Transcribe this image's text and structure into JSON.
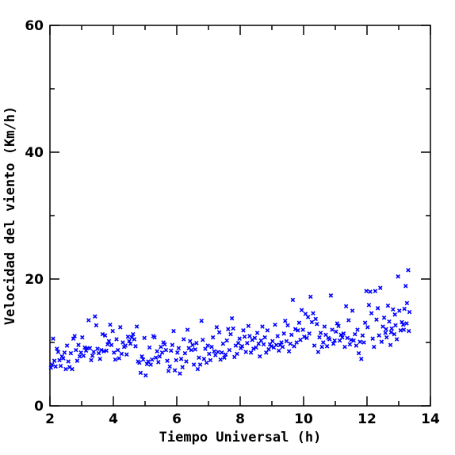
{
  "chart_data": {
    "type": "scatter",
    "title": "",
    "xlabel": "Tiempo Universal (h)",
    "ylabel": "Velocidad del viento (Km/h)",
    "xlim": [
      2,
      14
    ],
    "ylim": [
      0,
      60
    ],
    "xticks": [
      2,
      4,
      6,
      8,
      10,
      12,
      14
    ],
    "yticks": [
      0,
      20,
      40,
      60
    ],
    "grid": false,
    "marker": "x",
    "color": "#0000ff",
    "series": [
      {
        "points": [
          [
            2.03,
            6.0
          ],
          [
            2.07,
            6.5
          ],
          [
            2.1,
            10.6
          ],
          [
            2.14,
            7.1
          ],
          [
            2.18,
            6.2
          ],
          [
            2.22,
            9.0
          ],
          [
            2.26,
            8.5
          ],
          [
            2.3,
            7.2
          ],
          [
            2.34,
            6.3
          ],
          [
            2.38,
            7.8
          ],
          [
            2.42,
            7.5
          ],
          [
            2.46,
            8.4
          ],
          [
            2.5,
            5.8
          ],
          [
            2.54,
            9.5
          ],
          [
            2.58,
            7.0
          ],
          [
            2.62,
            6.1
          ],
          [
            2.66,
            8.3
          ],
          [
            2.7,
            5.8
          ],
          [
            2.74,
            10.6
          ],
          [
            2.78,
            11.0
          ],
          [
            2.82,
            8.8
          ],
          [
            2.86,
            7.1
          ],
          [
            2.9,
            9.6
          ],
          [
            2.94,
            7.8
          ],
          [
            2.98,
            8.4
          ],
          [
            3.02,
            10.8
          ],
          [
            3.06,
            7.9
          ],
          [
            3.1,
            9.2
          ],
          [
            3.14,
            8.7
          ],
          [
            3.18,
            9.1
          ],
          [
            3.22,
            13.5
          ],
          [
            3.26,
            9.1
          ],
          [
            3.3,
            7.2
          ],
          [
            3.34,
            7.9
          ],
          [
            3.38,
            8.5
          ],
          [
            3.42,
            14.1
          ],
          [
            3.46,
            12.7
          ],
          [
            3.5,
            9.0
          ],
          [
            3.54,
            8.3
          ],
          [
            3.58,
            7.4
          ],
          [
            3.62,
            8.8
          ],
          [
            3.66,
            11.3
          ],
          [
            3.7,
            8.6
          ],
          [
            3.74,
            11.1
          ],
          [
            3.78,
            8.7
          ],
          [
            3.82,
            9.7
          ],
          [
            3.86,
            10.2
          ],
          [
            3.9,
            12.8
          ],
          [
            3.94,
            9.6
          ],
          [
            3.98,
            11.8
          ],
          [
            4.02,
            8.4
          ],
          [
            4.06,
            7.3
          ],
          [
            4.1,
            10.5
          ],
          [
            4.14,
            8.8
          ],
          [
            4.18,
            7.5
          ],
          [
            4.22,
            12.4
          ],
          [
            4.26,
            8.2
          ],
          [
            4.3,
            10.0
          ],
          [
            4.34,
            9.3
          ],
          [
            4.38,
            9.5
          ],
          [
            4.42,
            8.1
          ],
          [
            4.46,
            10.9
          ],
          [
            4.5,
            10.2
          ],
          [
            4.54,
            9.8
          ],
          [
            4.58,
            10.8
          ],
          [
            4.62,
            11.3
          ],
          [
            4.66,
            10.5
          ],
          [
            4.7,
            9.4
          ],
          [
            4.74,
            12.5
          ],
          [
            4.78,
            7.0
          ],
          [
            4.82,
            6.8
          ],
          [
            4.86,
            5.2
          ],
          [
            4.9,
            7.8
          ],
          [
            4.94,
            7.3
          ],
          [
            4.98,
            10.7
          ],
          [
            5.02,
            4.8
          ],
          [
            5.06,
            6.6
          ],
          [
            5.1,
            7.0
          ],
          [
            5.14,
            9.2
          ],
          [
            5.18,
            6.5
          ],
          [
            5.22,
            7.3
          ],
          [
            5.26,
            11.0
          ],
          [
            5.3,
            10.8
          ],
          [
            5.34,
            7.6
          ],
          [
            5.38,
            8.6
          ],
          [
            5.42,
            6.9
          ],
          [
            5.46,
            7.8
          ],
          [
            5.5,
            9.3
          ],
          [
            5.54,
            8.4
          ],
          [
            5.58,
            10.0
          ],
          [
            5.62,
            9.7
          ],
          [
            5.66,
            8.8
          ],
          [
            5.7,
            7.1
          ],
          [
            5.74,
            5.5
          ],
          [
            5.78,
            6.2
          ],
          [
            5.82,
            8.7
          ],
          [
            5.86,
            9.6
          ],
          [
            5.9,
            11.8
          ],
          [
            5.94,
            5.6
          ],
          [
            5.98,
            7.2
          ],
          [
            6.02,
            8.4
          ],
          [
            6.06,
            9.1
          ],
          [
            6.1,
            5.1
          ],
          [
            6.14,
            7.4
          ],
          [
            6.18,
            6.1
          ],
          [
            6.22,
            10.5
          ],
          [
            6.26,
            8.3
          ],
          [
            6.3,
            7.0
          ],
          [
            6.34,
            12.0
          ],
          [
            6.38,
            9.1
          ],
          [
            6.42,
            10.2
          ],
          [
            6.46,
            8.8
          ],
          [
            6.5,
            9.6
          ],
          [
            6.54,
            6.5
          ],
          [
            6.58,
            8.9
          ],
          [
            6.62,
            9.9
          ],
          [
            6.66,
            5.8
          ],
          [
            6.7,
            7.6
          ],
          [
            6.74,
            6.5
          ],
          [
            6.78,
            13.4
          ],
          [
            6.82,
            10.4
          ],
          [
            6.86,
            7.4
          ],
          [
            6.9,
            9.0
          ],
          [
            6.94,
            6.8
          ],
          [
            6.98,
            9.5
          ],
          [
            7.02,
            8.2
          ],
          [
            7.06,
            7.2
          ],
          [
            7.1,
            9.3
          ],
          [
            7.14,
            10.8
          ],
          [
            7.18,
            8.6
          ],
          [
            7.22,
            8.0
          ],
          [
            7.26,
            12.4
          ],
          [
            7.3,
            8.5
          ],
          [
            7.34,
            11.6
          ],
          [
            7.38,
            7.3
          ],
          [
            7.42,
            8.4
          ],
          [
            7.46,
            9.8
          ],
          [
            7.5,
            7.6
          ],
          [
            7.54,
            8.1
          ],
          [
            7.58,
            10.3
          ],
          [
            7.62,
            12.1
          ],
          [
            7.66,
            8.8
          ],
          [
            7.7,
            11.3
          ],
          [
            7.74,
            13.8
          ],
          [
            7.78,
            12.2
          ],
          [
            7.82,
            7.7
          ],
          [
            7.86,
            9.5
          ],
          [
            7.9,
            8.2
          ],
          [
            7.94,
            9.9
          ],
          [
            7.98,
            10.6
          ],
          [
            8.02,
            9.1
          ],
          [
            8.06,
            9.4
          ],
          [
            8.1,
            11.9
          ],
          [
            8.14,
            10.9
          ],
          [
            8.18,
            8.5
          ],
          [
            8.22,
            9.9
          ],
          [
            8.26,
            12.6
          ],
          [
            8.3,
            11.0
          ],
          [
            8.34,
            8.4
          ],
          [
            8.38,
            10.4
          ],
          [
            8.42,
            9.0
          ],
          [
            8.46,
            10.7
          ],
          [
            8.5,
            9.2
          ],
          [
            8.54,
            11.5
          ],
          [
            8.58,
            9.8
          ],
          [
            8.62,
            7.8
          ],
          [
            8.66,
            10.3
          ],
          [
            8.7,
            12.5
          ],
          [
            8.74,
            9.7
          ],
          [
            8.78,
            10.8
          ],
          [
            8.82,
            8.4
          ],
          [
            8.86,
            11.9
          ],
          [
            8.9,
            8.9
          ],
          [
            8.94,
            9.7
          ],
          [
            8.98,
            9.4
          ],
          [
            9.02,
            10.2
          ],
          [
            9.06,
            9.2
          ],
          [
            9.1,
            12.8
          ],
          [
            9.14,
            9.6
          ],
          [
            9.18,
            11.0
          ],
          [
            9.22,
            8.7
          ],
          [
            9.26,
            9.6
          ],
          [
            9.3,
            10.0
          ],
          [
            9.34,
            9.3
          ],
          [
            9.38,
            11.4
          ],
          [
            9.42,
            13.4
          ],
          [
            9.46,
            10.2
          ],
          [
            9.5,
            12.7
          ],
          [
            9.54,
            8.6
          ],
          [
            9.58,
            9.8
          ],
          [
            9.62,
            11.2
          ],
          [
            9.66,
            16.7
          ],
          [
            9.7,
            9.4
          ],
          [
            9.74,
            12.1
          ],
          [
            9.78,
            10.0
          ],
          [
            9.82,
            11.9
          ],
          [
            9.86,
            13.1
          ],
          [
            9.9,
            10.4
          ],
          [
            9.94,
            15.1
          ],
          [
            9.98,
            12.0
          ],
          [
            10.02,
            10.9
          ],
          [
            10.06,
            14.5
          ],
          [
            10.1,
            10.7
          ],
          [
            10.14,
            14.0
          ],
          [
            10.18,
            11.4
          ],
          [
            10.22,
            17.2
          ],
          [
            10.26,
            13.2
          ],
          [
            10.3,
            14.6
          ],
          [
            10.34,
            9.5
          ],
          [
            10.38,
            13.7
          ],
          [
            10.42,
            12.9
          ],
          [
            10.46,
            8.5
          ],
          [
            10.5,
            10.8
          ],
          [
            10.54,
            11.5
          ],
          [
            10.58,
            9.3
          ],
          [
            10.62,
            10.0
          ],
          [
            10.66,
            12.5
          ],
          [
            10.7,
            11.2
          ],
          [
            10.74,
            9.4
          ],
          [
            10.78,
            10.7
          ],
          [
            10.82,
            10.5
          ],
          [
            10.86,
            17.4
          ],
          [
            10.9,
            12.0
          ],
          [
            10.94,
            9.8
          ],
          [
            10.98,
            10.3
          ],
          [
            11.02,
            11.7
          ],
          [
            11.06,
            13.0
          ],
          [
            11.1,
            12.6
          ],
          [
            11.14,
            10.3
          ],
          [
            11.18,
            11.2
          ],
          [
            11.22,
            10.8
          ],
          [
            11.26,
            11.4
          ],
          [
            11.3,
            9.3
          ],
          [
            11.34,
            15.7
          ],
          [
            11.38,
            10.7
          ],
          [
            11.42,
            13.5
          ],
          [
            11.46,
            9.7
          ],
          [
            11.5,
            10.4
          ],
          [
            11.54,
            15.0
          ],
          [
            11.58,
            10.3
          ],
          [
            11.62,
            11.3
          ],
          [
            11.66,
            9.5
          ],
          [
            11.7,
            12.0
          ],
          [
            11.74,
            8.3
          ],
          [
            11.78,
            10.1
          ],
          [
            11.82,
            7.4
          ],
          [
            11.86,
            11.1
          ],
          [
            11.9,
            10.0
          ],
          [
            11.94,
            13.1
          ],
          [
            11.98,
            18.1
          ],
          [
            12.02,
            12.4
          ],
          [
            12.06,
            15.9
          ],
          [
            12.1,
            18.0
          ],
          [
            12.14,
            14.6
          ],
          [
            12.18,
            10.6
          ],
          [
            12.22,
            9.3
          ],
          [
            12.26,
            18.1
          ],
          [
            12.3,
            13.6
          ],
          [
            12.34,
            15.4
          ],
          [
            12.38,
            11.1
          ],
          [
            12.42,
            18.6
          ],
          [
            12.46,
            10.1
          ],
          [
            12.5,
            12.5
          ],
          [
            12.54,
            13.9
          ],
          [
            12.58,
            11.5
          ],
          [
            12.62,
            10.8
          ],
          [
            12.66,
            15.8
          ],
          [
            12.7,
            13.3
          ],
          [
            12.74,
            9.6
          ],
          [
            12.78,
            12.2
          ],
          [
            12.82,
            15.2
          ],
          [
            12.86,
            11.3
          ],
          [
            12.9,
            12.7
          ],
          [
            12.94,
            10.5
          ],
          [
            12.98,
            20.4
          ],
          [
            13.02,
            15.0
          ],
          [
            13.06,
            11.9
          ],
          [
            13.1,
            13.2
          ],
          [
            13.14,
            12.8
          ],
          [
            13.18,
            15.3
          ],
          [
            13.22,
            18.9
          ],
          [
            13.26,
            16.2
          ],
          [
            13.3,
            21.4
          ],
          [
            13.34,
            14.8
          ],
          [
            13.32,
            11.8
          ],
          [
            13.25,
            13.0
          ],
          [
            12.88,
            14.4
          ],
          [
            12.6,
            12.1
          ],
          [
            13.16,
            12.0
          ],
          [
            12.76,
            11.6
          ]
        ]
      }
    ]
  }
}
